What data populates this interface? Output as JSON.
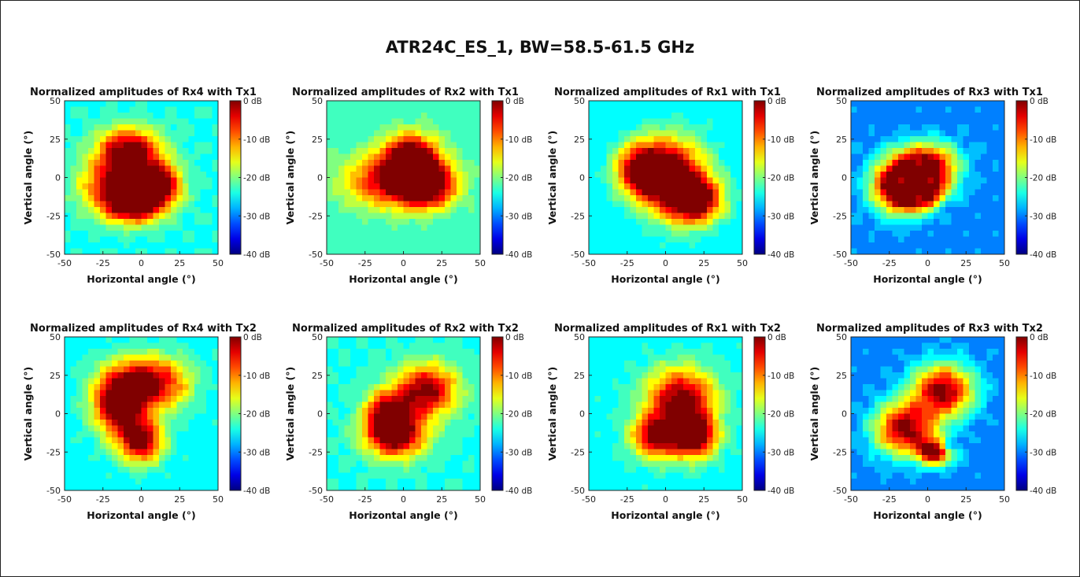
{
  "figure": {
    "title": "ATR24C_ES_1, BW=58.5-61.5 GHz"
  },
  "colorbar": {
    "ticks": [
      "0 dB",
      "-10 dB",
      "-20 dB",
      "-30 dB",
      "-40 dB"
    ],
    "range_db": [
      -40,
      0
    ],
    "colormap": "jet"
  },
  "chart_data": [
    {
      "type": "heatmap",
      "title": "Normalized amplitudes of Rx4 with Tx1",
      "xlabel": "Horizontal angle (°)",
      "ylabel": "Vertical angle (°)",
      "x_ticks": [
        "-50",
        "-25",
        "0",
        "25",
        "50"
      ],
      "y_ticks": [
        "50",
        "25",
        "0",
        "-25",
        "-50"
      ],
      "xlim": [
        -50,
        50
      ],
      "ylim": [
        -50,
        50
      ],
      "clim_db": [
        -40,
        0
      ],
      "peak_db": 0,
      "edge_min_db": -24,
      "contour_lines": true
    },
    {
      "type": "heatmap",
      "title": "Normalized amplitudes of Rx2 with Tx1",
      "xlabel": "Horizontal angle (°)",
      "ylabel": "Vertical angle (°)",
      "x_ticks": [
        "-50",
        "-25",
        "0",
        "25",
        "50"
      ],
      "y_ticks": [
        "50",
        "25",
        "0",
        "-25",
        "-50"
      ],
      "xlim": [
        -50,
        50
      ],
      "ylim": [
        -50,
        50
      ],
      "clim_db": [
        -40,
        0
      ],
      "peak_db": 0,
      "edge_min_db": -23,
      "contour_lines": true
    },
    {
      "type": "heatmap",
      "title": "Normalized amplitudes of Rx1 with Tx1",
      "xlabel": "Horizontal angle (°)",
      "ylabel": "Vertical angle (°)",
      "x_ticks": [
        "-50",
        "-25",
        "0",
        "25",
        "50"
      ],
      "y_ticks": [
        "50",
        "25",
        "0",
        "-25",
        "-50"
      ],
      "xlim": [
        -50,
        50
      ],
      "ylim": [
        -50,
        50
      ],
      "clim_db": [
        -40,
        0
      ],
      "peak_db": 0,
      "edge_min_db": -26,
      "contour_lines": true
    },
    {
      "type": "heatmap",
      "title": "Normalized amplitudes of Rx3 with Tx1",
      "xlabel": "Horizontal angle (°)",
      "ylabel": "Vertical angle (°)",
      "x_ticks": [
        "-50",
        "-25",
        "0",
        "25",
        "50"
      ],
      "y_ticks": [
        "50",
        "25",
        "0",
        "-25",
        "-50"
      ],
      "xlim": [
        -50,
        50
      ],
      "ylim": [
        -50,
        50
      ],
      "clim_db": [
        -40,
        0
      ],
      "peak_db": 0,
      "edge_min_db": -30,
      "contour_lines": true
    },
    {
      "type": "heatmap",
      "title": "Normalized amplitudes of Rx4 with Tx2",
      "xlabel": "Horizontal angle (°)",
      "ylabel": "Vertical angle (°)",
      "x_ticks": [
        "-50",
        "-25",
        "0",
        "25",
        "50"
      ],
      "y_ticks": [
        "50",
        "25",
        "0",
        "-25",
        "-50"
      ],
      "xlim": [
        -50,
        50
      ],
      "ylim": [
        -50,
        50
      ],
      "clim_db": [
        -40,
        0
      ],
      "peak_db": 0,
      "edge_min_db": -25,
      "contour_lines": true
    },
    {
      "type": "heatmap",
      "title": "Normalized amplitudes of Rx2 with Tx2",
      "xlabel": "Horizontal angle (°)",
      "ylabel": "Vertical angle (°)",
      "x_ticks": [
        "-50",
        "-25",
        "0",
        "25",
        "50"
      ],
      "y_ticks": [
        "50",
        "25",
        "0",
        "-25",
        "-50"
      ],
      "xlim": [
        -50,
        50
      ],
      "ylim": [
        -50,
        50
      ],
      "clim_db": [
        -40,
        0
      ],
      "peak_db": 0,
      "edge_min_db": -24,
      "contour_lines": true
    },
    {
      "type": "heatmap",
      "title": "Normalized amplitudes of Rx1 with Tx2",
      "xlabel": "Horizontal angle (°)",
      "ylabel": "Vertical angle (°)",
      "x_ticks": [
        "-50",
        "-25",
        "0",
        "25",
        "50"
      ],
      "y_ticks": [
        "50",
        "25",
        "0",
        "-25",
        "-50"
      ],
      "xlim": [
        -50,
        50
      ],
      "ylim": [
        -50,
        50
      ],
      "clim_db": [
        -40,
        0
      ],
      "peak_db": 0,
      "edge_min_db": -25,
      "contour_lines": true
    },
    {
      "type": "heatmap",
      "title": "Normalized amplitudes of Rx3 with Tx2",
      "xlabel": "Horizontal angle (°)",
      "ylabel": "Vertical angle (°)",
      "x_ticks": [
        "-50",
        "-25",
        "0",
        "25",
        "50"
      ],
      "y_ticks": [
        "50",
        "25",
        "0",
        "-25",
        "-50"
      ],
      "xlim": [
        -50,
        50
      ],
      "ylim": [
        -50,
        50
      ],
      "clim_db": [
        -40,
        0
      ],
      "peak_db": 0,
      "edge_min_db": -30,
      "contour_lines": true
    }
  ]
}
